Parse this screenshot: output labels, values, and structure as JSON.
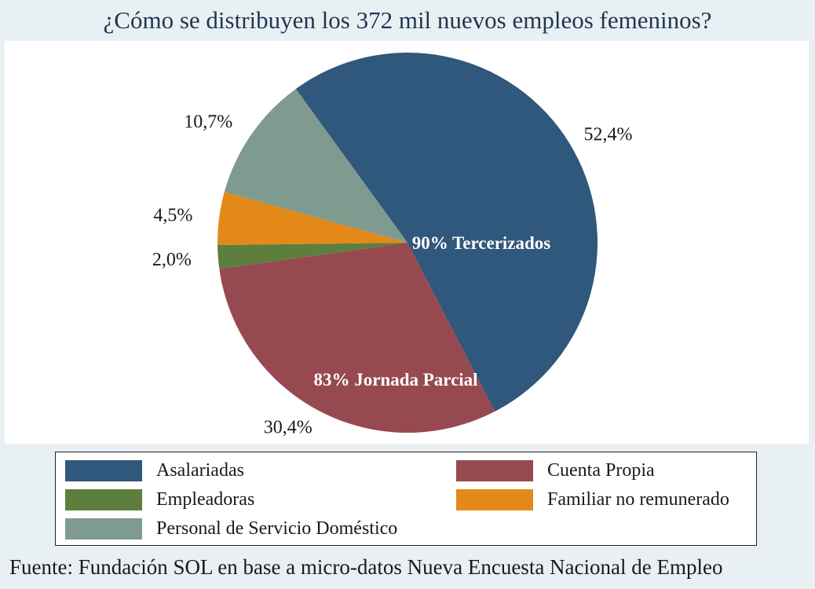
{
  "chart_data": {
    "type": "pie",
    "title": "¿Cómo se distribuyen los 372 mil nuevos empleos femeninos?",
    "source": "Fuente: Fundación SOL en base a micro-datos Nueva Encuesta Nacional de Empleo",
    "slices": [
      {
        "label": "Asalariadas",
        "value": 52.4,
        "value_label": "52,4%",
        "color": "#30577c",
        "inner_label": "90% Tercerizados"
      },
      {
        "label": "Cuenta Propia",
        "value": 30.4,
        "value_label": "30,4%",
        "color": "#974950",
        "inner_label": "83% Jornada Parcial"
      },
      {
        "label": "Empleadoras",
        "value": 2.0,
        "value_label": "2,0%",
        "color": "#5e7e3e",
        "inner_label": ""
      },
      {
        "label": "Familiar no remunerado",
        "value": 4.5,
        "value_label": "4,5%",
        "color": "#e38919",
        "inner_label": ""
      },
      {
        "label": "Personal de Servicio Doméstico",
        "value": 10.7,
        "value_label": "10,7%",
        "color": "#7f9a8f",
        "inner_label": ""
      }
    ],
    "legend_order": [
      "Asalariadas",
      "Cuenta Propia",
      "Empleadoras",
      "Familiar no remunerado",
      "Personal de Servicio Doméstico"
    ],
    "legend_placement": "bottom"
  }
}
